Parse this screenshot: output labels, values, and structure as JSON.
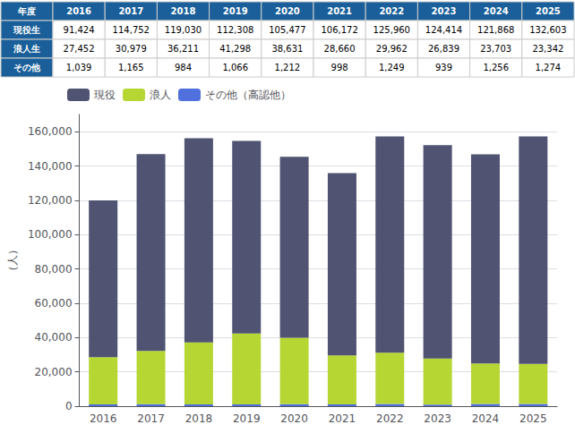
{
  "chart_data": {
    "type": "bar",
    "stacked": true,
    "categories": [
      "2016",
      "2017",
      "2018",
      "2019",
      "2020",
      "2021",
      "2022",
      "2023",
      "2024",
      "2025"
    ],
    "series": [
      {
        "name": "その他（高認他）",
        "values": [
          1039,
          1165,
          984,
          1066,
          1212,
          998,
          1249,
          939,
          1256,
          1274
        ]
      },
      {
        "name": "浪人",
        "values": [
          27452,
          30979,
          36211,
          41298,
          38631,
          28660,
          29962,
          26839,
          23703,
          23342
        ]
      },
      {
        "name": "現役",
        "values": [
          91424,
          114752,
          119030,
          112308,
          105477,
          106172,
          125960,
          124414,
          121868,
          132603
        ]
      }
    ],
    "ylabel": "（人）",
    "ylim": [
      0,
      170000
    ],
    "yticks": [
      0,
      {
        "value": 20000,
        "label": "20,000"
      },
      {
        "value": 40000,
        "label": "40,000"
      },
      {
        "value": 60000,
        "label": "60,000"
      },
      {
        "value": 80000,
        "label": "80,000"
      },
      {
        "value": 100000,
        "label": "100,000"
      },
      {
        "value": 120000,
        "label": "120,000"
      },
      {
        "value": 140000,
        "label": "140,000"
      },
      {
        "value": 160000,
        "label": "160,000"
      }
    ],
    "grid": true,
    "legend": "upper left",
    "table": {
      "columns": [
        "年度",
        "2016",
        "2017",
        "2018",
        "2019",
        "2020",
        "2021",
        "2022",
        "2023",
        "2024",
        "2025"
      ],
      "rows": [
        [
          "現役生",
          "91,424",
          "114,752",
          "119,030",
          "112,308",
          "105,477",
          "106,172",
          "125,960",
          "124,414",
          "121,868",
          "132,603"
        ],
        [
          "浪人生",
          "27,452",
          "30,979",
          "36,211",
          "41,298",
          "38,631",
          "28,660",
          "29,962",
          "26,839",
          "23,703",
          "23,342"
        ],
        [
          "その他",
          "1,039",
          "1,165",
          "984",
          "1,066",
          "1,212",
          "998",
          "1,249",
          "939",
          "1,256",
          "1,274"
        ]
      ]
    }
  }
}
